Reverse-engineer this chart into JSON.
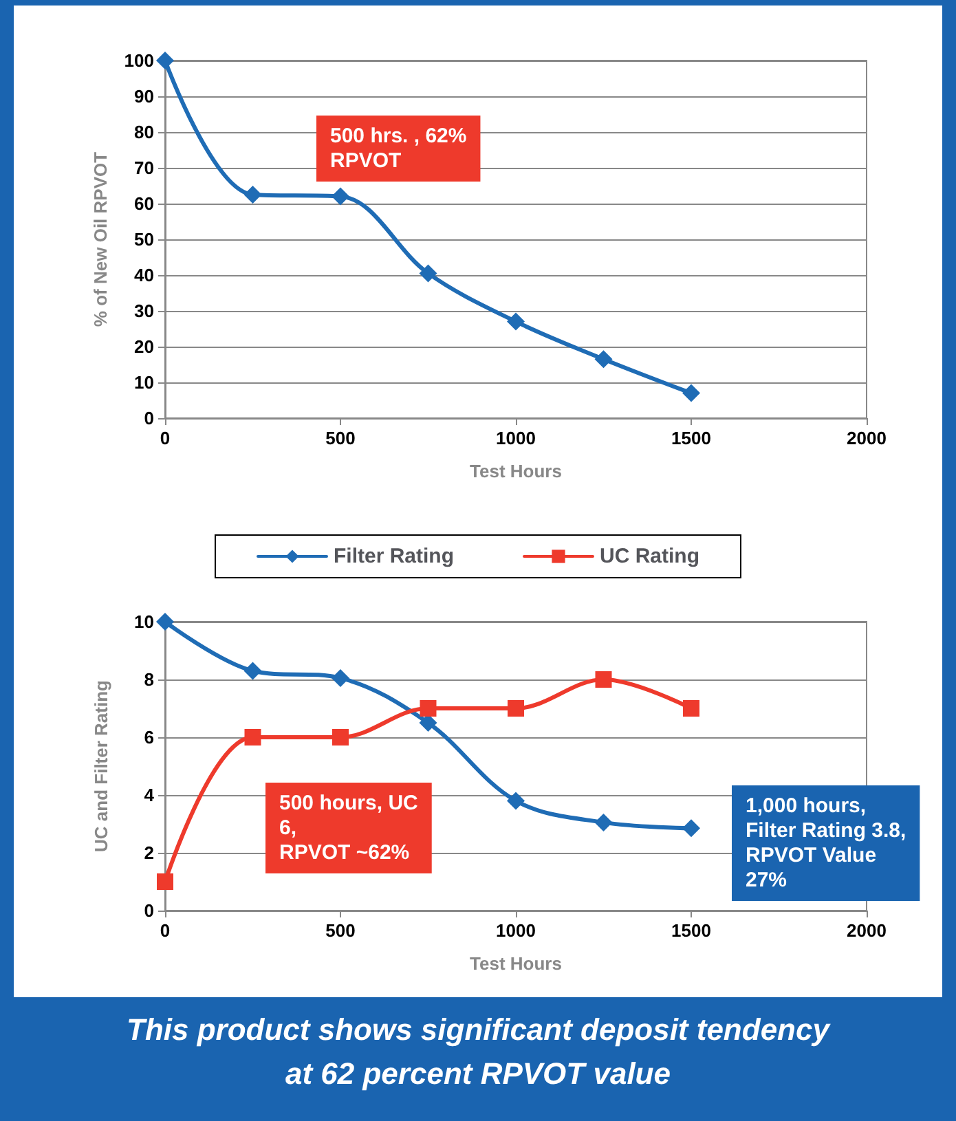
{
  "chart_data": [
    {
      "type": "line",
      "xlabel": "Test Hours",
      "ylabel": "% of New Oil RPVOT",
      "x": [
        0,
        250,
        500,
        750,
        1000,
        1250,
        1500
      ],
      "series": [
        {
          "color": "#1f6cb5",
          "values": [
            100,
            62.5,
            62,
            40.5,
            27,
            16.5,
            7
          ]
        }
      ],
      "xlim": [
        0,
        2000
      ],
      "xticks": [
        0,
        500,
        1000,
        1500,
        2000
      ],
      "ylim": [
        0,
        100
      ],
      "yticks": [
        0,
        10,
        20,
        30,
        40,
        50,
        60,
        70,
        80,
        90,
        100
      ],
      "grid": "y",
      "legend": false,
      "marker": "diamond",
      "annotations": [
        "500 hrs. , 62%\nRPVOT"
      ]
    },
    {
      "type": "line",
      "xlabel": "Test Hours",
      "ylabel": "UC and Filter Rating",
      "x": [
        0,
        250,
        500,
        750,
        1000,
        1250,
        1500
      ],
      "series": [
        {
          "name": "Filter Rating",
          "color": "#1f6cb5",
          "marker": "diamond",
          "values": [
            10,
            8.3,
            8.05,
            6.5,
            3.8,
            3.05,
            2.85
          ]
        },
        {
          "name": "UC Rating",
          "color": "#ee3a2c",
          "marker": "square",
          "values": [
            1,
            6,
            6,
            7,
            7,
            8,
            7
          ]
        }
      ],
      "xlim": [
        0,
        2000
      ],
      "xticks": [
        0,
        500,
        1000,
        1500,
        2000
      ],
      "ylim": [
        0,
        10
      ],
      "yticks": [
        0,
        2,
        4,
        6,
        8,
        10
      ],
      "grid": "y",
      "legend": "top",
      "annotations": [
        "500 hours, UC\n6,\nRPVOT ~62%",
        "1,000 hours,\nFilter Rating 3.8,\nRPVOT Value\n27%",
        "This product shows significant deposit tendency\nat 62 percent RPVOT value"
      ]
    }
  ]
}
